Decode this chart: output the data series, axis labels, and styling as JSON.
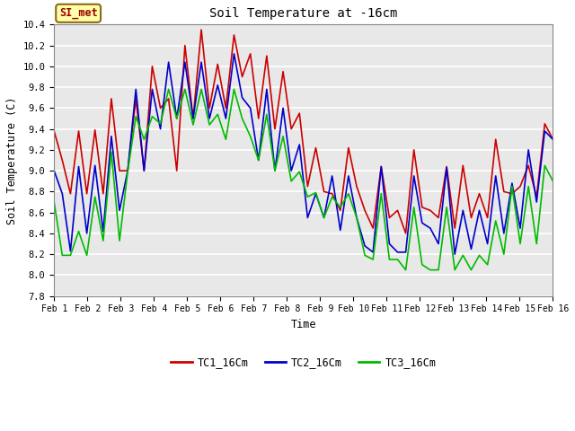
{
  "title": "Soil Temperature at -16cm",
  "xlabel": "Time",
  "ylabel": "Soil Temperature (C)",
  "ylim": [
    7.8,
    10.4
  ],
  "bg_color": "#ffffff",
  "plot_bg": "#e8e8e8",
  "grid_color": "#ffffff",
  "legend_label": "SI_met",
  "legend_bg": "#ffffaa",
  "legend_border": "#8B6914",
  "tc1_color": "#cc0000",
  "tc2_color": "#0000cc",
  "tc3_color": "#00bb00",
  "tick_labels": [
    "Feb 1",
    "Feb 2",
    "Feb 3",
    "Feb 4",
    "Feb 5",
    "Feb 6",
    "Feb 7",
    "Feb 8",
    "Feb 9",
    "Feb 10",
    "Feb 11",
    "Feb 12",
    "Feb 13",
    "Feb 14",
    "Feb 15",
    "Feb 16"
  ],
  "tc1_values": [
    9.38,
    9.1,
    8.78,
    9.38,
    8.78,
    9.39,
    8.78,
    9.69,
    9.0,
    9.0,
    9.69,
    9.0,
    10.0,
    9.6,
    9.69,
    9.0,
    10.2,
    9.5,
    10.35,
    9.6,
    10.02,
    9.6,
    10.3,
    9.9,
    10.12,
    9.5,
    10.1,
    9.4,
    9.95,
    9.4,
    9.55,
    8.85,
    9.22,
    8.8,
    8.78,
    8.62,
    9.22,
    8.85,
    8.62,
    8.45,
    9.04,
    8.55,
    8.62,
    8.4,
    9.2,
    8.65,
    8.62,
    8.55,
    9.04,
    8.45,
    9.05,
    8.55,
    8.78,
    8.55,
    9.3,
    8.8,
    8.78,
    8.85,
    9.05,
    8.75,
    9.45,
    9.3
  ],
  "tc2_values": [
    9.0,
    8.78,
    8.23,
    9.04,
    8.4,
    9.05,
    8.42,
    9.33,
    8.62,
    9.0,
    9.78,
    9.0,
    9.78,
    9.4,
    10.04,
    9.5,
    10.04,
    9.5,
    10.04,
    9.5,
    9.82,
    9.5,
    10.12,
    9.7,
    9.6,
    9.1,
    9.78,
    9.0,
    9.6,
    9.0,
    9.25,
    8.55,
    8.78,
    8.55,
    8.95,
    8.43,
    8.95,
    8.55,
    8.28,
    8.22,
    9.04,
    8.3,
    8.22,
    8.22,
    8.95,
    8.5,
    8.45,
    8.3,
    9.03,
    8.2,
    8.62,
    8.25,
    8.62,
    8.3,
    8.95,
    8.4,
    8.88,
    8.45,
    9.2,
    8.7,
    9.38,
    9.3
  ],
  "tc3_values": [
    8.7,
    8.19,
    8.19,
    8.42,
    8.19,
    8.75,
    8.33,
    9.18,
    8.33,
    8.99,
    9.52,
    9.3,
    9.52,
    9.45,
    9.78,
    9.5,
    9.78,
    9.44,
    9.78,
    9.44,
    9.54,
    9.3,
    9.78,
    9.5,
    9.33,
    9.1,
    9.54,
    9.0,
    9.33,
    8.9,
    8.99,
    8.75,
    8.79,
    8.55,
    8.75,
    8.65,
    8.78,
    8.55,
    8.19,
    8.15,
    8.78,
    8.15,
    8.15,
    8.05,
    8.65,
    8.1,
    8.05,
    8.05,
    8.65,
    8.05,
    8.19,
    8.05,
    8.19,
    8.1,
    8.52,
    8.2,
    8.85,
    8.3,
    8.85,
    8.3,
    9.05,
    8.9
  ]
}
